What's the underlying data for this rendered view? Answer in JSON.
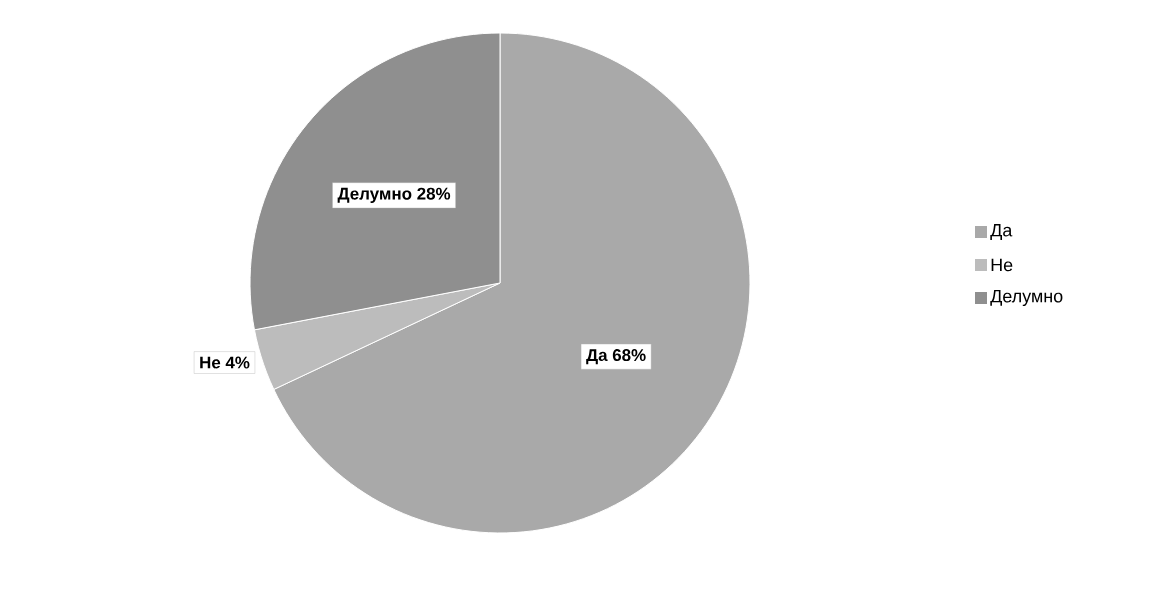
{
  "chart_data": {
    "type": "pie",
    "categories": [
      "Да",
      "Не",
      "Делумно"
    ],
    "values": [
      68,
      4,
      28
    ],
    "colors": [
      "#a9a9a9",
      "#bcbcbc",
      "#8f8f8f"
    ],
    "value_labels": [
      "Да 68%",
      "Не 4%",
      "Делумно 28%"
    ],
    "legend": "right"
  }
}
